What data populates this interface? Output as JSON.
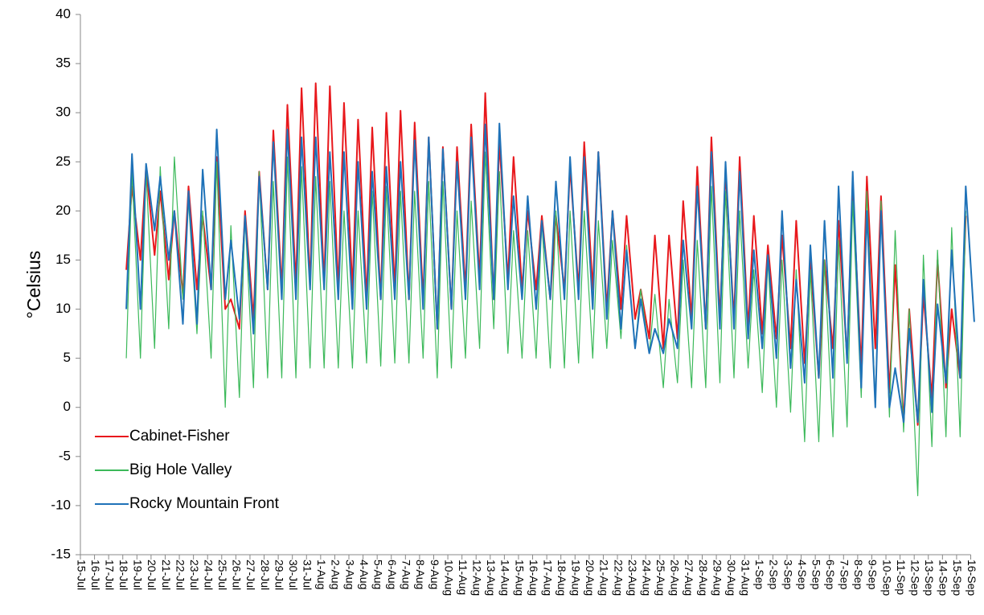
{
  "chart_data": {
    "type": "line",
    "ylabel": "°Celsius",
    "categories": [
      "15-Jul",
      "16-Jul",
      "17-Jul",
      "18-Jul",
      "19-Jul",
      "20-Jul",
      "21-Jul",
      "22-Jul",
      "23-Jul",
      "24-Jul",
      "25-Jul",
      "26-Jul",
      "27-Jul",
      "28-Jul",
      "29-Jul",
      "30-Jul",
      "31-Jul",
      "1-Aug",
      "2-Aug",
      "3-Aug",
      "4-Aug",
      "5-Aug",
      "6-Aug",
      "7-Aug",
      "8-Aug",
      "9-Aug",
      "10-Aug",
      "11-Aug",
      "12-Aug",
      "13-Aug",
      "14-Aug",
      "15-Aug",
      "16-Aug",
      "17-Aug",
      "18-Aug",
      "19-Aug",
      "20-Aug",
      "21-Aug",
      "22-Aug",
      "23-Aug",
      "24-Aug",
      "25-Aug",
      "26-Aug",
      "27-Aug",
      "28-Aug",
      "29-Aug",
      "30-Aug",
      "31-Aug",
      "1-Sep",
      "2-Sep",
      "3-Sep",
      "4-Sep",
      "5-Sep",
      "6-Sep",
      "7-Sep",
      "8-Sep",
      "9-Sep",
      "10-Sep",
      "11-Sep",
      "12-Sep",
      "13-Sep",
      "14-Sep",
      "15-Sep",
      "16-Sep"
    ],
    "series": [
      {
        "name": "Cabinet-Fisher",
        "color": "#e8181c",
        "values": [
          null,
          null,
          null,
          [
            14,
            22.5
          ],
          [
            15,
            24.5
          ],
          [
            15.5,
            22
          ],
          [
            13,
            20
          ],
          [
            11.5,
            22.5
          ],
          [
            12,
            19.5
          ],
          [
            12,
            25.5
          ],
          [
            10,
            11
          ],
          [
            8,
            20
          ],
          [
            9,
            24
          ],
          [
            12,
            28.2
          ],
          [
            12,
            30.8
          ],
          [
            12.5,
            32.5
          ],
          [
            12.5,
            33
          ],
          [
            12.5,
            32.7
          ],
          [
            12,
            31
          ],
          [
            12,
            29.3
          ],
          [
            11,
            28.5
          ],
          [
            11,
            30
          ],
          [
            12,
            30.2
          ],
          [
            11,
            29
          ],
          [
            11,
            27.5
          ],
          [
            8,
            26.5
          ],
          [
            10,
            26.5
          ],
          [
            12,
            28.8
          ],
          [
            13,
            32
          ],
          [
            11,
            27
          ],
          [
            13,
            25.5
          ],
          [
            12,
            20
          ],
          [
            12,
            19.5
          ],
          [
            11,
            19.5
          ],
          [
            12,
            24.5
          ],
          [
            12,
            27
          ],
          [
            12,
            26
          ],
          [
            10,
            20
          ],
          [
            10,
            19.5
          ],
          [
            9,
            12
          ],
          [
            7,
            17.5
          ],
          [
            6,
            17.5
          ],
          [
            7,
            21
          ],
          [
            9,
            24.5
          ],
          [
            8,
            27.5
          ],
          [
            9,
            24
          ],
          [
            9,
            25.5
          ],
          [
            8,
            19.5
          ],
          [
            7.5,
            16.5
          ],
          [
            7,
            17.5
          ],
          [
            6,
            19
          ],
          [
            4.5,
            15
          ],
          [
            3,
            15
          ],
          [
            6,
            19
          ],
          [
            5,
            22.5
          ],
          [
            4,
            23.5
          ],
          [
            6,
            21.5
          ],
          [
            1.5,
            14.5
          ],
          [
            -1.5,
            10
          ],
          [
            -1.8,
            11.5
          ],
          [
            1,
            15
          ],
          [
            2,
            10
          ],
          [
            3,
            19.5
          ],
          null
        ]
      },
      {
        "name": "Big Hole Valley",
        "color": "#3cb95a",
        "values": [
          null,
          null,
          null,
          [
            5,
            24
          ],
          [
            5,
            24
          ],
          [
            6,
            24.5
          ],
          [
            8,
            25.5
          ],
          [
            11,
            21
          ],
          [
            7.5,
            20
          ],
          [
            5,
            25
          ],
          [
            0,
            18.5
          ],
          [
            1,
            19.5
          ],
          [
            2,
            24
          ],
          [
            3,
            23
          ],
          [
            3,
            25.5
          ],
          [
            3,
            24.5
          ],
          [
            4,
            23.5
          ],
          [
            4,
            23
          ],
          [
            4,
            20
          ],
          [
            4,
            20
          ],
          [
            4.5,
            22
          ],
          [
            4.2,
            22.5
          ],
          [
            4.5,
            22
          ],
          [
            4.5,
            22
          ],
          [
            5,
            23
          ],
          [
            3,
            23
          ],
          [
            4,
            20
          ],
          [
            5,
            21
          ],
          [
            6,
            26
          ],
          [
            8,
            24
          ],
          [
            5.5,
            18
          ],
          [
            5,
            18
          ],
          [
            5,
            19
          ],
          [
            4,
            20
          ],
          [
            4,
            20
          ],
          [
            4.5,
            20
          ],
          [
            5,
            19
          ],
          [
            6,
            17
          ],
          [
            7,
            16.5
          ],
          [
            6,
            12
          ],
          [
            5.5,
            11.5
          ],
          [
            2,
            11
          ],
          [
            2.5,
            15
          ],
          [
            2,
            17
          ],
          [
            2,
            22.5
          ],
          [
            2.5,
            22
          ],
          [
            3,
            20
          ],
          [
            4,
            14
          ],
          [
            1.5,
            15
          ],
          [
            0,
            15
          ],
          [
            -0.5,
            14
          ],
          [
            -3.5,
            14
          ],
          [
            -3.5,
            15
          ],
          [
            -3,
            17
          ],
          [
            -2,
            21
          ],
          [
            1,
            22
          ],
          [
            0.5,
            21
          ],
          [
            -1,
            18
          ],
          [
            -2.5,
            10
          ],
          [
            -9,
            15.5
          ],
          [
            -4,
            16
          ],
          [
            -3,
            18.3
          ],
          [
            -3,
            20
          ],
          null
        ]
      },
      {
        "name": "Rocky Mountain Front",
        "color": "#1f72b8",
        "values": [
          null,
          null,
          null,
          [
            10,
            25.8
          ],
          [
            10,
            24.8
          ],
          [
            18,
            23.5
          ],
          [
            15,
            20
          ],
          [
            8.5,
            22
          ],
          [
            8.5,
            24.2
          ],
          [
            12,
            28.3
          ],
          [
            11,
            17
          ],
          [
            9,
            19.5
          ],
          [
            7.5,
            23.5
          ],
          [
            12,
            27
          ],
          [
            11,
            28.3
          ],
          [
            11,
            27.5
          ],
          [
            12,
            27.5
          ],
          [
            12,
            26
          ],
          [
            11,
            26
          ],
          [
            10,
            25
          ],
          [
            10,
            24
          ],
          [
            11,
            24.5
          ],
          [
            11,
            25
          ],
          [
            11,
            27.2
          ],
          [
            10,
            27.5
          ],
          [
            8,
            26.3
          ],
          [
            10,
            25
          ],
          [
            11,
            27.5
          ],
          [
            12,
            28.8
          ],
          [
            11,
            28.9
          ],
          [
            12,
            21.5
          ],
          [
            11,
            21.5
          ],
          [
            10,
            19
          ],
          [
            11,
            23
          ],
          [
            11,
            25.5
          ],
          [
            11,
            25.5
          ],
          [
            10,
            26
          ],
          [
            9,
            20
          ],
          [
            8,
            16
          ],
          [
            6,
            11
          ],
          [
            5.5,
            8
          ],
          [
            5.5,
            9
          ],
          [
            6,
            17
          ],
          [
            8,
            22.5
          ],
          [
            8,
            26
          ],
          [
            8,
            25
          ],
          [
            8,
            24
          ],
          [
            7,
            16
          ],
          [
            6,
            15.5
          ],
          [
            5,
            20
          ],
          [
            4,
            13
          ],
          [
            2.5,
            16.5
          ],
          [
            3,
            19
          ],
          [
            3,
            22.5
          ],
          [
            4.5,
            24
          ],
          [
            2,
            20
          ],
          [
            0,
            20
          ],
          [
            0,
            4
          ],
          [
            -1.5,
            8
          ],
          [
            -1.5,
            13
          ],
          [
            -0.5,
            10.5
          ],
          [
            2.5,
            16
          ],
          [
            3,
            22.5
          ],
          [
            8.7,
            null
          ]
        ]
      }
    ],
    "ylim": [
      -15,
      40
    ],
    "yticks": [
      -15,
      -10,
      -5,
      0,
      5,
      10,
      15,
      20,
      25,
      30,
      35,
      40
    ],
    "legend": "lower left"
  }
}
